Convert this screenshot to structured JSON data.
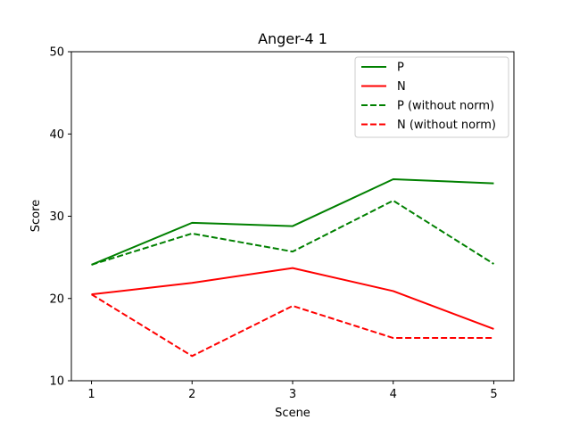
{
  "chart_data": {
    "type": "line",
    "title": "Anger-4 1",
    "xlabel": "Scene",
    "ylabel": "Score",
    "x": [
      1,
      2,
      3,
      4,
      5
    ],
    "xlim": [
      0.8,
      5.2
    ],
    "ylim": [
      10,
      50
    ],
    "xticks": [
      "1",
      "2",
      "3",
      "4",
      "5"
    ],
    "yticks": [
      "10",
      "20",
      "30",
      "40",
      "50"
    ],
    "grid": false,
    "legend_position": "top-right",
    "series": [
      {
        "name": "P",
        "values": [
          24.1,
          29.2,
          28.8,
          34.5,
          34.0
        ],
        "color": "#008000",
        "style": "solid"
      },
      {
        "name": "N",
        "values": [
          20.5,
          21.9,
          23.7,
          20.9,
          16.3
        ],
        "color": "#ff0000",
        "style": "solid"
      },
      {
        "name": "P (without norm)",
        "values": [
          24.1,
          27.9,
          25.7,
          31.9,
          24.2
        ],
        "color": "#008000",
        "style": "dashed"
      },
      {
        "name": "N (without norm)",
        "values": [
          20.5,
          13.0,
          19.1,
          15.2,
          15.2
        ],
        "color": "#ff0000",
        "style": "dashed"
      }
    ]
  }
}
